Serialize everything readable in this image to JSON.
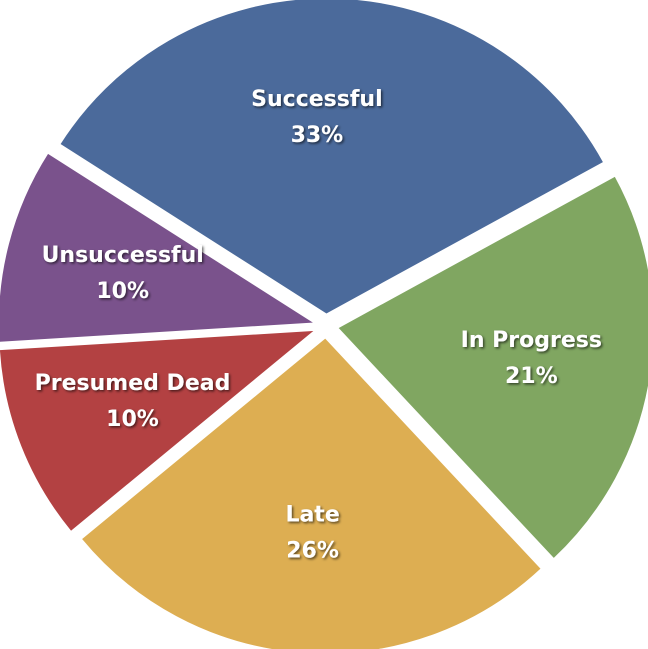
{
  "chart_data": {
    "type": "pie",
    "title": "",
    "exploded": true,
    "slices": [
      {
        "label": "Successful",
        "value": 33,
        "value_label": "33%",
        "color": "#4b6a9b"
      },
      {
        "label": "In Progress",
        "value": 21,
        "value_label": "21%",
        "color": "#80a661"
      },
      {
        "label": "Late",
        "value": 26,
        "value_label": "26%",
        "color": "#ddae52"
      },
      {
        "label": "Presumed Dead",
        "value": 10,
        "value_label": "10%",
        "color": "#b34142"
      },
      {
        "label": "Unsuccessful",
        "value": 10,
        "value_label": "10%",
        "color": "#7a528c"
      }
    ]
  }
}
